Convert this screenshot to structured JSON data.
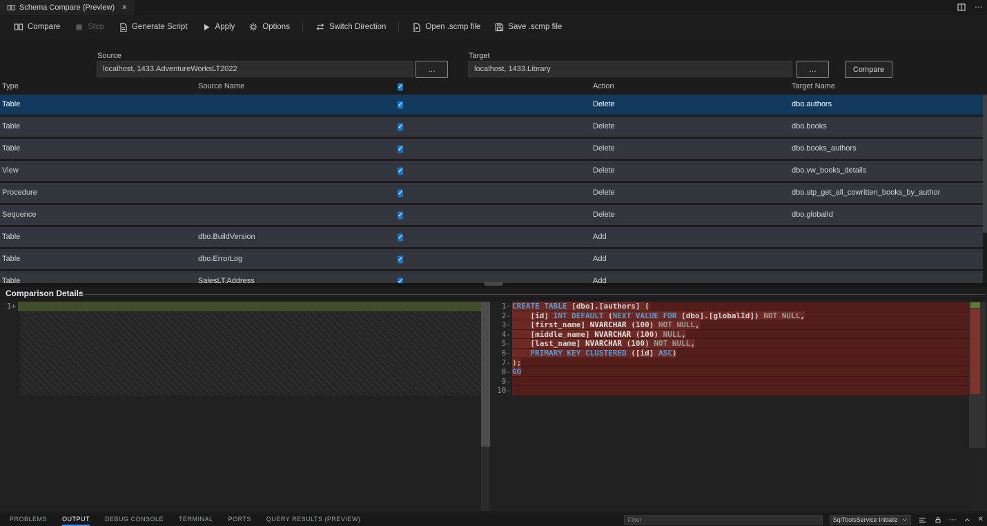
{
  "tab": {
    "title": "Schema Compare (Preview)"
  },
  "icons": {
    "check": "✓",
    "close": "✕",
    "more": "⋯",
    "browse": "…"
  },
  "toolbar": {
    "items": [
      {
        "label": "Compare"
      },
      {
        "label": "Stop",
        "disabled": true
      },
      {
        "label": "Generate Script"
      },
      {
        "label": "Apply"
      },
      {
        "label": "Options"
      },
      {
        "label": "Switch Direction"
      },
      {
        "label": "Open .scmp file"
      },
      {
        "label": "Save .scmp file"
      }
    ]
  },
  "connections": {
    "source_label": "Source",
    "source_value": "localhost, 1433.AdventureWorksLT2022",
    "target_label": "Target",
    "target_value": "localhost, 1433.Library",
    "compare_button": "Compare"
  },
  "grid": {
    "columns": {
      "type": "Type",
      "source": "Source Name",
      "action": "Action",
      "target": "Target Name"
    },
    "rows": [
      {
        "type": "Table",
        "source": "",
        "checked": true,
        "action": "Delete",
        "target": "dbo.authors",
        "selected": true
      },
      {
        "type": "Table",
        "source": "",
        "checked": true,
        "action": "Delete",
        "target": "dbo.books"
      },
      {
        "type": "Table",
        "source": "",
        "checked": true,
        "action": "Delete",
        "target": "dbo.books_authors"
      },
      {
        "type": "View",
        "source": "",
        "checked": true,
        "action": "Delete",
        "target": "dbo.vw_books_details"
      },
      {
        "type": "Procedure",
        "source": "",
        "checked": true,
        "action": "Delete",
        "target": "dbo.stp_get_all_cowritten_books_by_author"
      },
      {
        "type": "Sequence",
        "source": "",
        "checked": true,
        "action": "Delete",
        "target": "dbo.globalId"
      },
      {
        "type": "Table",
        "source": "dbo.BuildVersion",
        "checked": true,
        "action": "Add",
        "target": ""
      },
      {
        "type": "Table",
        "source": "dbo.ErrorLog",
        "checked": true,
        "action": "Add",
        "target": ""
      },
      {
        "type": "Table",
        "source": "SalesLT.Address",
        "checked": true,
        "action": "Add",
        "target": ""
      }
    ]
  },
  "details": {
    "title": "Comparison Details",
    "left": {
      "lines": [
        {
          "n": "1",
          "s": "+"
        }
      ]
    },
    "right": {
      "lines": [
        {
          "n": "1",
          "s": "-",
          "seg": [
            [
              "kw",
              "CREATE TABLE"
            ],
            [
              "txt",
              " [dbo].[authors] ("
            ]
          ]
        },
        {
          "n": "2",
          "s": "-",
          "seg": [
            [
              "txt",
              "    [id] "
            ],
            [
              "kw",
              "INT DEFAULT"
            ],
            [
              "txt",
              " ("
            ],
            [
              "kw",
              "NEXT VALUE FOR"
            ],
            [
              "txt",
              " [dbo].[globalId])"
            ],
            [
              "dim",
              " NOT NULL"
            ],
            [
              "txt",
              ","
            ]
          ]
        },
        {
          "n": "3",
          "s": "-",
          "seg": [
            [
              "txt",
              "    [first_name] "
            ],
            [
              "bld",
              "NVARCHAR"
            ],
            [
              "txt",
              " (100)"
            ],
            [
              "dim",
              " NOT NULL"
            ],
            [
              "txt",
              ","
            ]
          ]
        },
        {
          "n": "4",
          "s": "-",
          "seg": [
            [
              "txt",
              "    [middle_name] "
            ],
            [
              "bld",
              "NVARCHAR"
            ],
            [
              "txt",
              " (100)"
            ],
            [
              "dim",
              " NULL"
            ],
            [
              "txt",
              ","
            ]
          ]
        },
        {
          "n": "5",
          "s": "-",
          "seg": [
            [
              "txt",
              "    [last_name] "
            ],
            [
              "bld",
              "NVARCHAR"
            ],
            [
              "txt",
              " (100)"
            ],
            [
              "dim",
              " NOT NULL"
            ],
            [
              "txt",
              ","
            ]
          ]
        },
        {
          "n": "6",
          "s": "-",
          "seg": [
            [
              "kw",
              "    PRIMARY KEY CLUSTERED"
            ],
            [
              "txt",
              " ([id] "
            ],
            [
              "kw",
              "ASC"
            ],
            [
              "txt",
              ")"
            ]
          ]
        },
        {
          "n": "7",
          "s": "-",
          "seg": [
            [
              "yel",
              ");"
            ]
          ]
        },
        {
          "n": "8",
          "s": "-",
          "seg": [
            [
              "kw",
              "GO"
            ]
          ]
        },
        {
          "n": "9",
          "s": "-",
          "seg": []
        },
        {
          "n": "10",
          "s": "-",
          "seg": []
        }
      ]
    }
  },
  "panel": {
    "tabs": [
      {
        "label": "PROBLEMS"
      },
      {
        "label": "OUTPUT",
        "active": true
      },
      {
        "label": "DEBUG CONSOLE"
      },
      {
        "label": "TERMINAL"
      },
      {
        "label": "PORTS"
      },
      {
        "label": "QUERY RESULTS (PREVIEW)"
      }
    ],
    "filter_placeholder": "Filter",
    "channel": "SqlToolsService Initializ"
  },
  "colors": {
    "accent": "#3794ff",
    "selection": "#12395e",
    "checkbox": "#1677cf",
    "diff_removed_line": "#531d1a",
    "diff_removed_inline": "#6d2a24",
    "diff_added_line": "#414e2a",
    "keyword": "#569cd6"
  }
}
